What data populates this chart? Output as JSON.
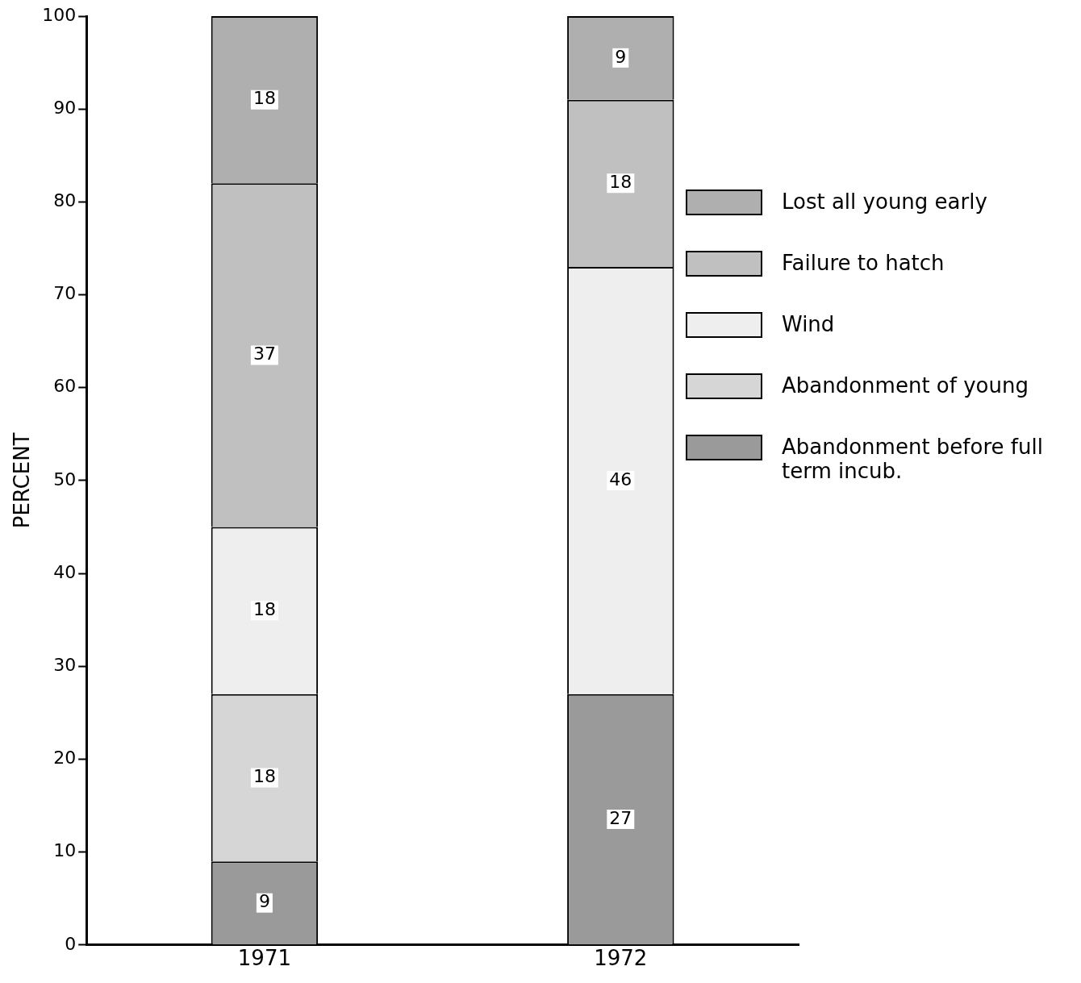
{
  "chart_data": {
    "type": "bar",
    "stacked": true,
    "ylabel": "PERCENT",
    "categories": [
      "1971",
      "1972"
    ],
    "series": [
      {
        "name": "Abandonment before full term incub.",
        "color": "#9a9a9a",
        "values": [
          9,
          27
        ]
      },
      {
        "name": "Abandonment of young",
        "color": "#d6d6d6",
        "values": [
          18,
          null
        ]
      },
      {
        "name": "Wind",
        "color": "#eeeeee",
        "values": [
          18,
          46
        ]
      },
      {
        "name": "Failure to hatch",
        "color": "#c0c0c0",
        "values": [
          37,
          18
        ]
      },
      {
        "name": "Lost all young early",
        "color": "#afafaf",
        "values": [
          18,
          9
        ]
      }
    ],
    "ylim": [
      0,
      100
    ],
    "yticks": [
      0,
      10,
      20,
      30,
      40,
      50,
      60,
      70,
      80,
      90,
      100
    ],
    "grid": false,
    "legend": "right",
    "data_labels": true
  }
}
